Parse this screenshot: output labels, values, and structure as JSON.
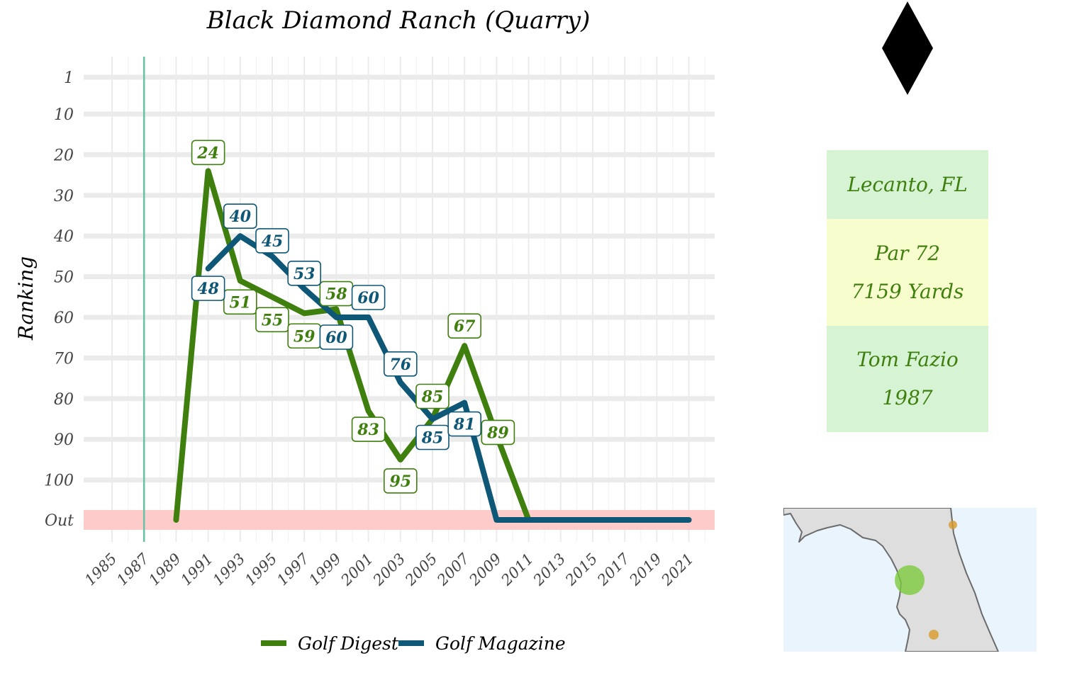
{
  "chart_data": {
    "type": "line",
    "title": "Black Diamond Ranch (Quarry)",
    "ylabel": "Ranking",
    "xlabel": "",
    "x_ticks": [
      1985,
      1987,
      1989,
      1991,
      1993,
      1995,
      1997,
      1999,
      2001,
      2003,
      2005,
      2007,
      2009,
      2011,
      2013,
      2015,
      2017,
      2019,
      2021
    ],
    "y_ticks": [
      "1",
      "10",
      "20",
      "30",
      "40",
      "50",
      "60",
      "70",
      "80",
      "90",
      "100",
      "Out"
    ],
    "y_reversed": true,
    "xlim": [
      1985,
      2021
    ],
    "opened_year": 1987,
    "out_band_label": "Out",
    "grid": true,
    "legend_position": "bottom",
    "series": [
      {
        "name": "Golf Digest",
        "color": "#3f7f0e",
        "points": [
          {
            "x": 1989,
            "y": "Out"
          },
          {
            "x": 1991,
            "y": 24
          },
          {
            "x": 1993,
            "y": 51
          },
          {
            "x": 1995,
            "y": 55
          },
          {
            "x": 1997,
            "y": 59
          },
          {
            "x": 1999,
            "y": 58
          },
          {
            "x": 2001,
            "y": 83
          },
          {
            "x": 2003,
            "y": 95
          },
          {
            "x": 2005,
            "y": 85
          },
          {
            "x": 2007,
            "y": 67
          },
          {
            "x": 2009,
            "y": 89
          },
          {
            "x": 2011,
            "y": "Out"
          }
        ]
      },
      {
        "name": "Golf Magazine",
        "color": "#0f5776",
        "points": [
          {
            "x": 1991,
            "y": 48
          },
          {
            "x": 1993,
            "y": 40
          },
          {
            "x": 1995,
            "y": 45
          },
          {
            "x": 1997,
            "y": 53
          },
          {
            "x": 1999,
            "y": 60
          },
          {
            "x": 2001,
            "y": 60
          },
          {
            "x": 2003,
            "y": 76
          },
          {
            "x": 2005,
            "y": 85
          },
          {
            "x": 2007,
            "y": 81
          },
          {
            "x": 2009,
            "y": "Out"
          },
          {
            "x": 2011,
            "y": "Out"
          },
          {
            "x": 2013,
            "y": "Out"
          },
          {
            "x": 2015,
            "y": "Out"
          },
          {
            "x": 2017,
            "y": "Out"
          },
          {
            "x": 2019,
            "y": "Out"
          },
          {
            "x": 2021,
            "y": "Out"
          }
        ]
      }
    ]
  },
  "info": {
    "location": "Lecanto, FL",
    "par": "Par 72",
    "yards": "7159 Yards",
    "designer": "Tom Fazio",
    "year": "1987"
  },
  "colors": {
    "out_band": "#fccbca",
    "opened_line": "#66c2a5",
    "card_green": "#d6f3d4",
    "card_yellow": "#f8fdce",
    "map_water": "#eaf4fd",
    "map_land": "#dedede",
    "map_highlight": "#7ccb3c",
    "map_other": "#d89a2a"
  },
  "icons": {
    "diamond": "black-diamond-icon"
  }
}
